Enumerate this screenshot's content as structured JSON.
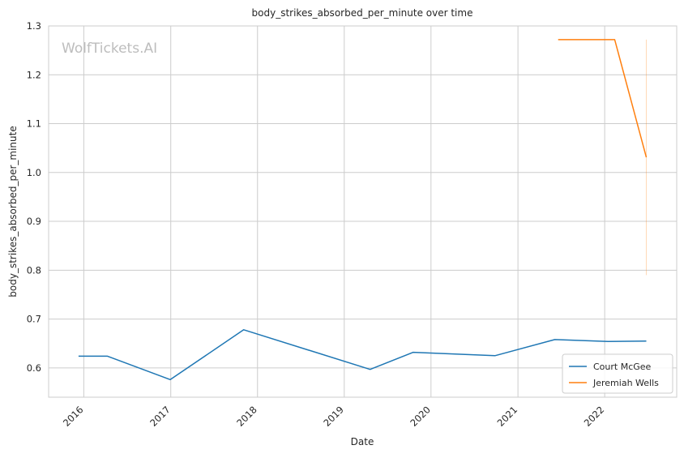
{
  "watermark": "WolfTickets.AI",
  "chart_data": {
    "type": "line",
    "title": "body_strikes_absorbed_per_minute over time",
    "xlabel": "Date",
    "ylabel": "body_strikes_absorbed_per_minute",
    "x_ticks": [
      "2016",
      "2017",
      "2018",
      "2019",
      "2020",
      "2021",
      "2022"
    ],
    "y_ticks": [
      "0.6",
      "0.7",
      "0.8",
      "0.9",
      "1.0",
      "1.1",
      "1.2",
      "1.3"
    ],
    "xlim": [
      "2015-08-06",
      "2022-10-31"
    ],
    "ylim": [
      0.54,
      1.3
    ],
    "grid": true,
    "legend_position": "lower-right",
    "series": [
      {
        "name": "Court McGee",
        "color": "#1f77b4",
        "points": [
          {
            "x": "2015-12-10",
            "y": 0.624
          },
          {
            "x": "2016-04-10",
            "y": 0.624
          },
          {
            "x": "2016-12-30",
            "y": 0.576
          },
          {
            "x": "2017-11-04",
            "y": 0.678
          },
          {
            "x": "2019-04-20",
            "y": 0.597
          },
          {
            "x": "2019-10-18",
            "y": 0.632
          },
          {
            "x": "2020-09-26",
            "y": 0.625
          },
          {
            "x": "2021-06-05",
            "y": 0.658
          },
          {
            "x": "2022-01-15",
            "y": 0.654
          },
          {
            "x": "2022-06-25",
            "y": 0.655
          }
        ]
      },
      {
        "name": "Jeremiah Wells",
        "color": "#ff7f0e",
        "points": [
          {
            "x": "2021-06-19",
            "y": 1.272
          },
          {
            "x": "2022-02-12",
            "y": 1.272
          },
          {
            "x": "2022-06-25",
            "y": 1.031
          }
        ],
        "band": {
          "x": "2022-06-25",
          "low": 0.79,
          "high": 1.272
        }
      }
    ]
  }
}
